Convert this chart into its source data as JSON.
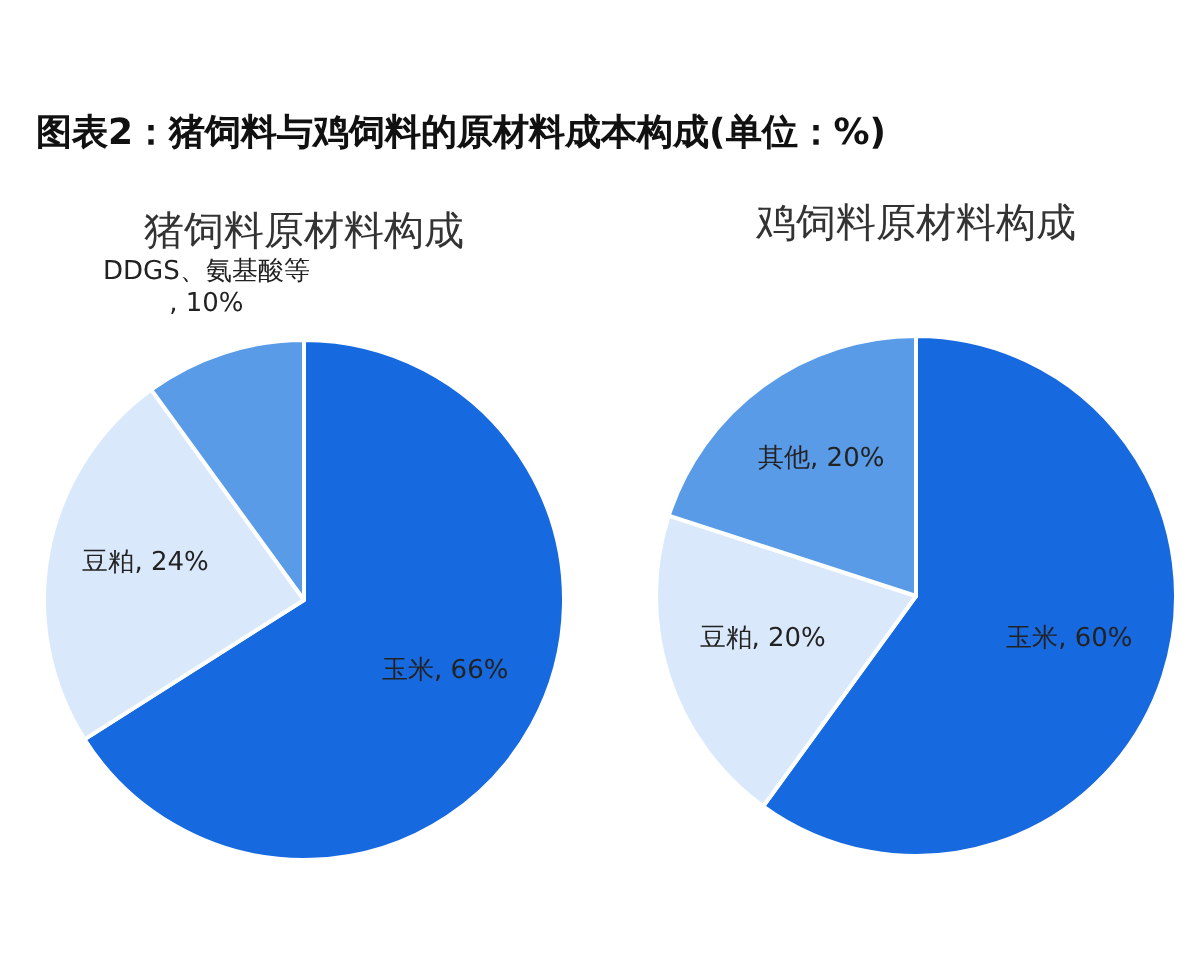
{
  "chart_data": [
    {
      "type": "pie",
      "title": "图表2：猪饲料与鸡饲料的原材料成本构成(单位：%)",
      "subtitle": "猪饲料原材料构成",
      "categories": [
        "玉米",
        "豆粕",
        "DDGS、氨基酸等"
      ],
      "values": [
        66,
        24,
        10
      ],
      "colors": [
        "#1769e0",
        "#dae8fb",
        "#5a9be8"
      ],
      "value_labels": [
        ", 66%",
        ", 24%",
        ", 10%"
      ]
    },
    {
      "type": "pie",
      "title": "鸡饲料原材料构成",
      "categories": [
        "玉米",
        "豆粕",
        "其他"
      ],
      "values": [
        60,
        20,
        20
      ],
      "colors": [
        "#1769e0",
        "#dae8fb",
        "#5a9be8"
      ],
      "value_labels": [
        ", 60%",
        ", 20%",
        ", 20%"
      ]
    }
  ]
}
